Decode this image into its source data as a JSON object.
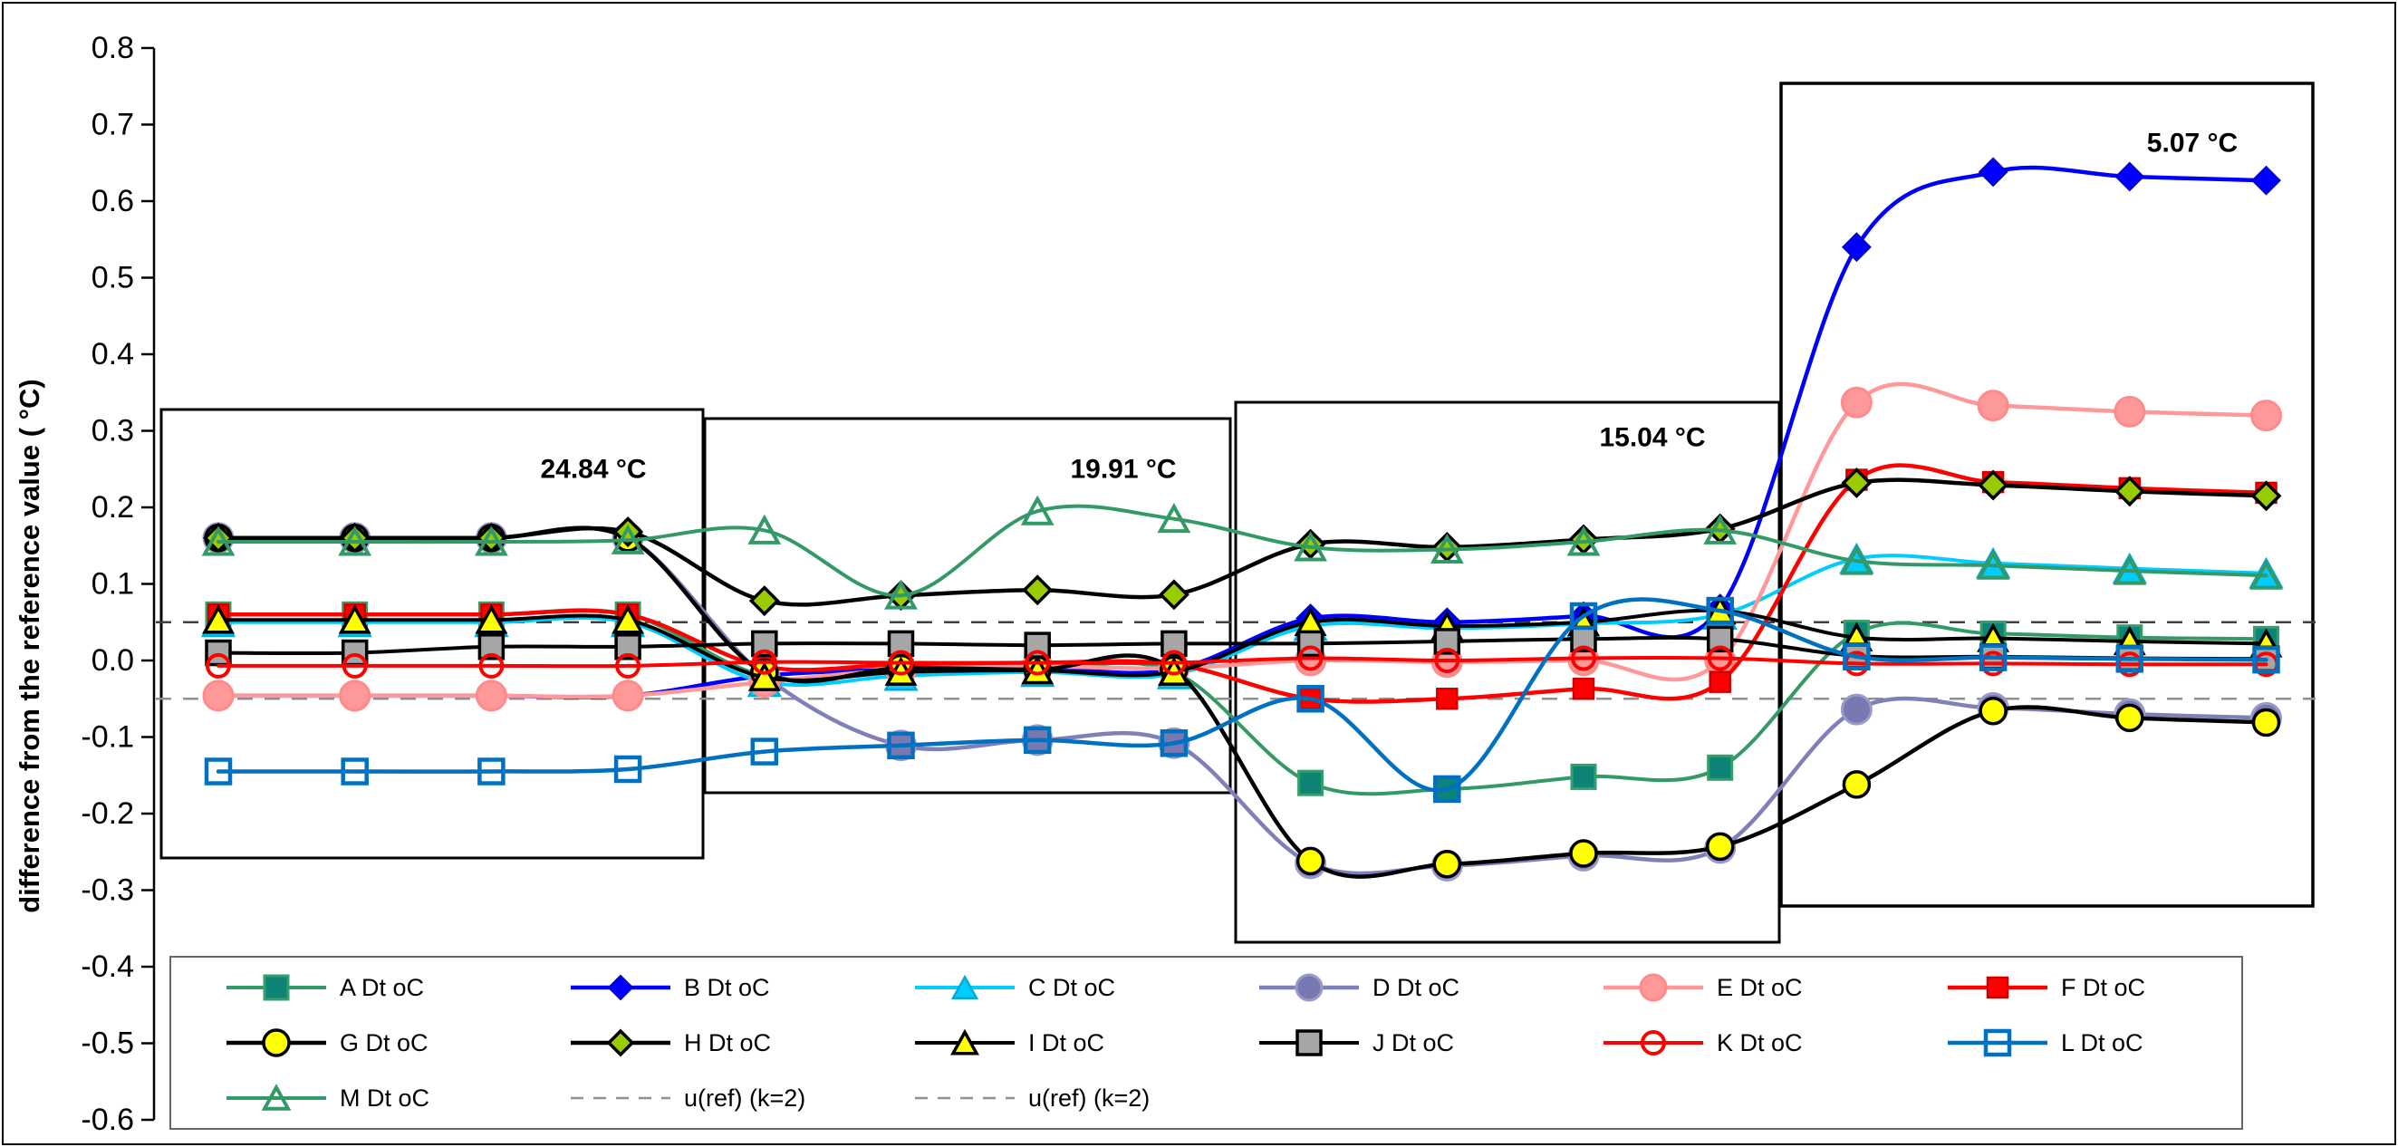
{
  "chart_data": {
    "type": "line",
    "title": "",
    "ylabel": "difference from the reference value ( °C)",
    "xlabel": "",
    "ylim": [
      -0.6,
      0.8
    ],
    "ytick_step": 0.1,
    "ytick_labels": [
      "0.8",
      "0.7",
      "0.6",
      "0.5",
      "0.4",
      "0.3",
      "0.2",
      "0.1",
      "0.0",
      "-0.1",
      "-0.2",
      "-0.3",
      "-0.4",
      "-0.5",
      "-0.6"
    ],
    "grid": "off",
    "legend_position": "bottom",
    "x": [
      1,
      2,
      3,
      4,
      5,
      6,
      7,
      8,
      9,
      10,
      11,
      12,
      13,
      14,
      15,
      16
    ],
    "series": [
      {
        "name": "A Dt oC",
        "line_color": "#339966",
        "line_width": 4,
        "marker": {
          "shape": "square",
          "size": 26,
          "fill": "#0E8476",
          "stroke": "#33A06C",
          "stroke_width": 3
        },
        "values": [
          0.06,
          0.06,
          0.06,
          0.06,
          -0.02,
          -0.015,
          -0.012,
          -0.015,
          -0.16,
          -0.168,
          -0.152,
          -0.14,
          0.036,
          0.035,
          0.03,
          0.028
        ]
      },
      {
        "name": "B Dt oC",
        "line_color": "#0000FF",
        "line_width": 4.5,
        "marker": {
          "shape": "diamond",
          "size": 30,
          "fill": "#0000FF",
          "stroke": "#0000CC",
          "stroke_width": 2
        },
        "values": [
          -0.046,
          -0.046,
          -0.046,
          -0.046,
          -0.02,
          -0.012,
          -0.01,
          -0.012,
          0.055,
          0.05,
          0.058,
          0.068,
          0.54,
          0.638,
          0.632,
          0.627
        ]
      },
      {
        "name": "C Dt oC",
        "line_color": "#00CCFF",
        "line_width": 4,
        "marker": {
          "shape": "triangle",
          "size": 34,
          "fill": "#00CCFF",
          "stroke": "#00ACD6",
          "stroke_width": 2.5
        },
        "values": [
          0.05,
          0.05,
          0.05,
          0.05,
          -0.028,
          -0.02,
          -0.015,
          -0.018,
          0.045,
          0.042,
          0.048,
          0.06,
          0.133,
          0.127,
          0.12,
          0.114
        ]
      },
      {
        "name": "D Dt oC",
        "line_color": "#8080B8",
        "line_width": 4.5,
        "marker": {
          "shape": "circle",
          "size": 16,
          "fill": "#7878B2",
          "stroke": "#9A9AC8",
          "stroke_width": 3
        },
        "values": [
          0.16,
          0.16,
          0.16,
          0.16,
          -0.02,
          -0.111,
          -0.104,
          -0.108,
          -0.265,
          -0.268,
          -0.255,
          -0.245,
          -0.064,
          -0.062,
          -0.07,
          -0.075
        ]
      },
      {
        "name": "E Dt oC",
        "line_color": "#FF9999",
        "line_width": 4.5,
        "marker": {
          "shape": "circle",
          "size": 16,
          "fill": "#FF9999",
          "stroke": "#FF8A8A",
          "stroke_width": 3
        },
        "values": [
          -0.046,
          -0.046,
          -0.046,
          -0.046,
          -0.028,
          -0.012,
          -0.008,
          -0.01,
          0.0,
          -0.002,
          0.0,
          0.0,
          0.337,
          0.333,
          0.325,
          0.32
        ]
      },
      {
        "name": "F Dt oC",
        "line_color": "#FF0000",
        "line_width": 4.5,
        "marker": {
          "shape": "square",
          "size": 22,
          "fill": "#FF0000",
          "stroke": "#D00000",
          "stroke_width": 2.5
        },
        "values": [
          0.06,
          0.06,
          0.06,
          0.06,
          -0.008,
          -0.005,
          -0.003,
          -0.005,
          -0.05,
          -0.05,
          -0.037,
          -0.028,
          0.236,
          0.233,
          0.225,
          0.219
        ]
      },
      {
        "name": "G Dt oC",
        "line_color": "#000000",
        "line_width": 4.5,
        "marker": {
          "shape": "circle",
          "size": 14,
          "fill": "#FFFF00",
          "stroke": "#000000",
          "stroke_width": 3.5
        },
        "values": [
          0.16,
          0.16,
          0.16,
          0.16,
          -0.016,
          -0.01,
          -0.012,
          -0.012,
          -0.262,
          -0.266,
          -0.252,
          -0.243,
          -0.162,
          -0.066,
          -0.075,
          -0.081
        ]
      },
      {
        "name": "H Dt oC",
        "line_color": "#000000",
        "line_width": 4.5,
        "marker": {
          "shape": "diamond",
          "size": 29,
          "fill": "#99CC00",
          "stroke": "#000000",
          "stroke_width": 3.5
        },
        "values": [
          0.16,
          0.16,
          0.16,
          0.168,
          0.078,
          0.085,
          0.092,
          0.086,
          0.152,
          0.148,
          0.158,
          0.172,
          0.232,
          0.229,
          0.221,
          0.215
        ]
      },
      {
        "name": "I Dt oC",
        "line_color": "#000000",
        "line_width": 4,
        "marker": {
          "shape": "triangle",
          "size": 30,
          "fill": "#FFFF00",
          "stroke": "#000000",
          "stroke_width": 3.5
        },
        "values": [
          0.053,
          0.053,
          0.053,
          0.053,
          -0.022,
          -0.015,
          -0.013,
          -0.015,
          0.05,
          0.045,
          0.05,
          0.065,
          0.03,
          0.029,
          0.025,
          0.022
        ]
      },
      {
        "name": "J Dt oC",
        "line_color": "#000000",
        "line_width": 4,
        "marker": {
          "shape": "square",
          "size": 26,
          "fill": "#A6A6A6",
          "stroke": "#000000",
          "stroke_width": 3.5
        },
        "values": [
          0.01,
          0.01,
          0.018,
          0.018,
          0.022,
          0.022,
          0.02,
          0.022,
          0.022,
          0.025,
          0.028,
          0.028,
          0.006,
          0.005,
          0.003,
          0.002
        ]
      },
      {
        "name": "K Dt oC",
        "line_color": "#FF0000",
        "line_width": 4,
        "marker": {
          "shape": "circle-open",
          "size": 12,
          "fill": "none",
          "stroke": "#FF0000",
          "stroke_width": 4
        },
        "values": [
          -0.007,
          -0.007,
          -0.007,
          -0.007,
          -0.002,
          -0.003,
          -0.003,
          -0.003,
          0.003,
          0.0,
          0.003,
          0.003,
          -0.004,
          -0.004,
          -0.005,
          -0.005
        ]
      },
      {
        "name": "L Dt oC",
        "line_color": "#0070C0",
        "line_width": 4.5,
        "marker": {
          "shape": "square-open",
          "size": 26,
          "fill": "none",
          "stroke": "#0070C0",
          "stroke_width": 4.5
        },
        "values": [
          -0.145,
          -0.145,
          -0.145,
          -0.142,
          -0.119,
          -0.111,
          -0.104,
          -0.108,
          -0.05,
          -0.168,
          0.058,
          0.065,
          0.005,
          0.004,
          0.002,
          0.001
        ]
      },
      {
        "name": "M Dt oC",
        "line_color": "#339966",
        "line_width": 4,
        "marker": {
          "shape": "triangle-open",
          "size": 30,
          "fill": "none",
          "stroke": "#339966",
          "stroke_width": 4
        },
        "values": [
          0.155,
          0.155,
          0.155,
          0.157,
          0.17,
          0.085,
          0.195,
          0.185,
          0.148,
          0.145,
          0.155,
          0.17,
          0.13,
          0.124,
          0.117,
          0.111
        ]
      }
    ],
    "ref_lines": [
      {
        "label": "u(ref) (k=2)",
        "value": 0.05,
        "color": "#404040"
      },
      {
        "label": "u(ref) (k=2)",
        "value": -0.05,
        "color": "#909090"
      }
    ],
    "annotations": [
      {
        "label": "24.84 °C",
        "points": [
          1,
          4
        ]
      },
      {
        "label": "19.91 °C",
        "points": [
          5,
          8
        ]
      },
      {
        "label": "15.04 °C",
        "points": [
          9,
          12
        ]
      },
      {
        "label": "5.07 °C",
        "points": [
          13,
          16
        ]
      }
    ]
  }
}
